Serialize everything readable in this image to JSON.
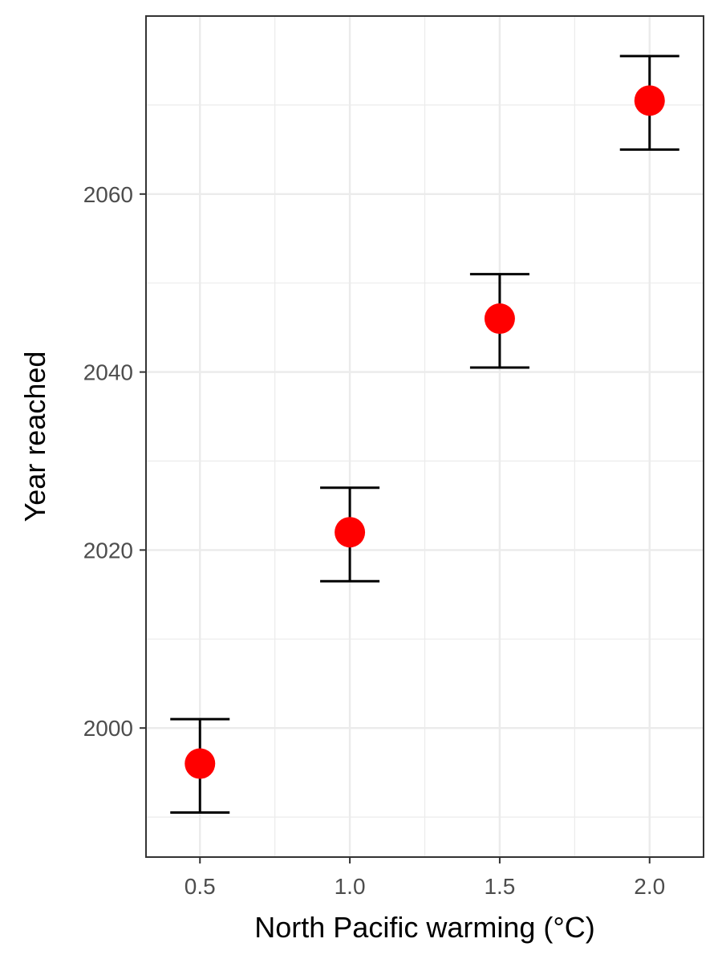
{
  "chart_data": {
    "type": "scatter",
    "title": "",
    "xlabel": "North Pacific warming (°C)",
    "ylabel": "Year reached",
    "x": [
      0.5,
      1.0,
      1.5,
      2.0
    ],
    "y": [
      1996,
      2022,
      2046,
      2070.5
    ],
    "y_lower": [
      1990.5,
      2016.5,
      2040.5,
      2065
    ],
    "y_upper": [
      2001,
      2027,
      2051,
      2075.5
    ],
    "xlim": [
      0.32,
      2.18
    ],
    "ylim": [
      1985.5,
      2080
    ],
    "x_ticks": [
      "0.5",
      "1.0",
      "1.5",
      "2.0"
    ],
    "y_ticks": [
      "2000",
      "2020",
      "2040",
      "2060"
    ],
    "grid": true,
    "colors": {
      "point": "#ff0000",
      "errorbar": "#000000",
      "grid": "#ebebeb",
      "border": "#333333"
    }
  }
}
